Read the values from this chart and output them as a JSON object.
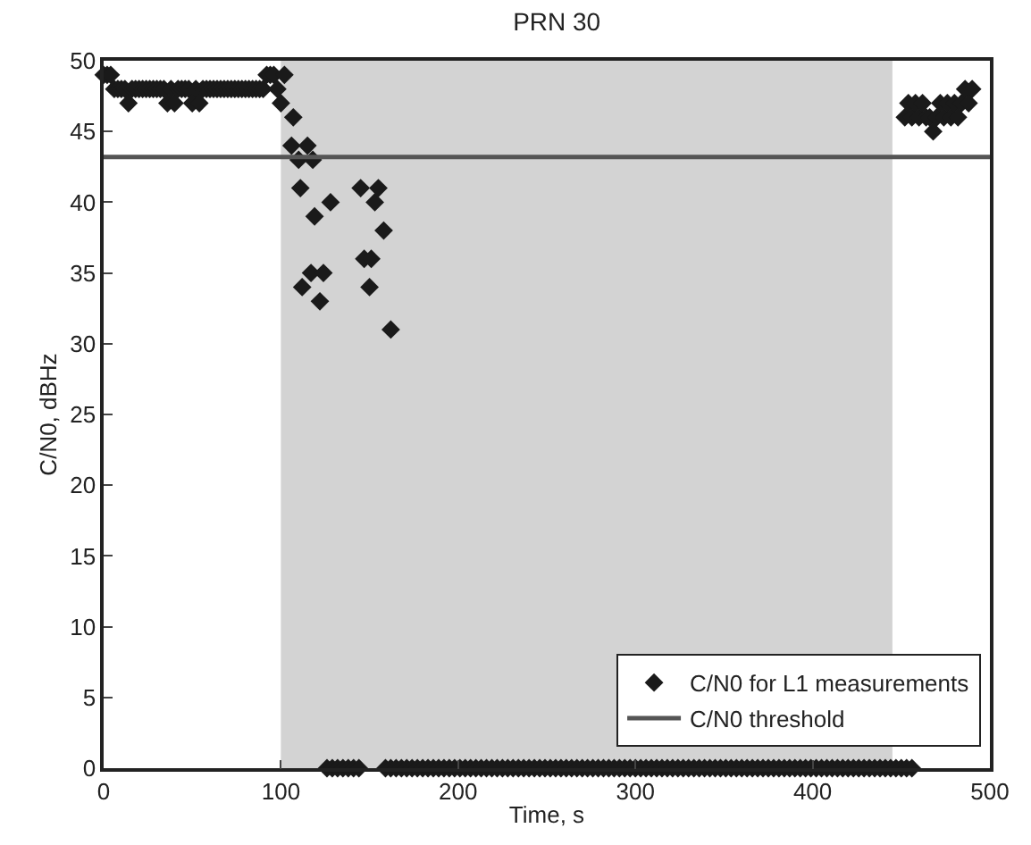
{
  "chart_data": {
    "type": "scatter",
    "title": "PRN 30",
    "xlabel": "Time, s",
    "ylabel": "C/N0, dBHz",
    "xlim": [
      0,
      500
    ],
    "xticks": [
      0,
      100,
      200,
      300,
      400,
      500
    ],
    "ylim": [
      0,
      50
    ],
    "yticks": [
      0,
      5,
      10,
      15,
      20,
      25,
      30,
      35,
      40,
      45,
      50
    ],
    "grid": false,
    "legend": "bottom right",
    "marker": "diamond",
    "series": [
      {
        "name": "C/N0 for L1 measurements",
        "color": "#1a1a1a",
        "x": [
          0,
          2,
          4,
          6,
          8,
          10,
          12,
          14,
          16,
          18,
          20,
          22,
          24,
          26,
          28,
          30,
          32,
          34,
          36,
          38,
          40,
          42,
          44,
          46,
          48,
          50,
          52,
          54,
          56,
          58,
          60,
          62,
          64,
          66,
          68,
          70,
          72,
          74,
          76,
          78,
          80,
          82,
          84,
          86,
          88,
          90,
          92,
          94,
          96,
          98,
          100,
          102,
          106,
          107,
          110,
          111,
          112,
          115,
          118,
          117,
          119,
          122,
          124,
          128,
          145,
          147,
          150,
          151,
          153,
          155,
          158,
          162,
          126,
          129,
          132,
          135,
          138,
          141,
          144,
          159,
          162,
          165,
          168,
          171,
          174,
          177,
          180,
          183,
          186,
          189,
          192,
          195,
          198,
          201,
          204,
          207,
          210,
          213,
          216,
          219,
          222,
          225,
          228,
          231,
          234,
          237,
          240,
          243,
          246,
          249,
          252,
          255,
          258,
          261,
          264,
          267,
          270,
          273,
          276,
          279,
          282,
          285,
          288,
          291,
          294,
          297,
          300,
          303,
          306,
          309,
          312,
          315,
          318,
          321,
          324,
          327,
          330,
          333,
          336,
          339,
          342,
          345,
          348,
          351,
          354,
          357,
          360,
          363,
          366,
          369,
          372,
          375,
          378,
          381,
          384,
          387,
          390,
          393,
          396,
          399,
          402,
          405,
          408,
          411,
          414,
          417,
          420,
          423,
          426,
          429,
          432,
          435,
          438,
          441,
          444,
          447,
          450,
          453,
          456,
          452,
          454,
          456,
          458,
          460,
          462,
          464,
          466,
          468,
          470,
          472,
          474,
          476,
          478,
          480,
          482,
          484,
          486,
          488,
          490
        ],
        "values": [
          49,
          49,
          49,
          48,
          48,
          48,
          48,
          47,
          48,
          48,
          48,
          48,
          48,
          48,
          48,
          48,
          48,
          48,
          47,
          48,
          47,
          48,
          48,
          48,
          48,
          47,
          48,
          47,
          48,
          48,
          48,
          48,
          48,
          48,
          48,
          48,
          48,
          48,
          48,
          48,
          48,
          48,
          48,
          48,
          48,
          48,
          49,
          49,
          49,
          48,
          47,
          49,
          44,
          46,
          43,
          41,
          34,
          44,
          43,
          35,
          39,
          33,
          35,
          40,
          41,
          36,
          34,
          36,
          40,
          41,
          38,
          31,
          0,
          0,
          0,
          0,
          0,
          0,
          0,
          0,
          0,
          0,
          0,
          0,
          0,
          0,
          0,
          0,
          0,
          0,
          0,
          0,
          0,
          0,
          0,
          0,
          0,
          0,
          0,
          0,
          0,
          0,
          0,
          0,
          0,
          0,
          0,
          0,
          0,
          0,
          0,
          0,
          0,
          0,
          0,
          0,
          0,
          0,
          0,
          0,
          0,
          0,
          0,
          0,
          0,
          0,
          0,
          0,
          0,
          0,
          0,
          0,
          0,
          0,
          0,
          0,
          0,
          0,
          0,
          0,
          0,
          0,
          0,
          0,
          0,
          0,
          0,
          0,
          0,
          0,
          0,
          0,
          0,
          0,
          0,
          0,
          0,
          0,
          0,
          0,
          0,
          0,
          0,
          0,
          0,
          0,
          0,
          0,
          0,
          0,
          0,
          0,
          0,
          0,
          0,
          0,
          0,
          0,
          0,
          46,
          47,
          46,
          47,
          46,
          47,
          46,
          46,
          45,
          46,
          47,
          46,
          47,
          46,
          47,
          46,
          47,
          48,
          47,
          48
        ]
      }
    ],
    "ref_lines": [
      {
        "axis": "y",
        "value": 43.2,
        "label": "C/N0 threshold",
        "color": "#555555",
        "line_style": "solid"
      }
    ],
    "bands": [
      {
        "axis": "x",
        "from": 100,
        "to": 445,
        "color": "#d3d3d3"
      }
    ]
  }
}
